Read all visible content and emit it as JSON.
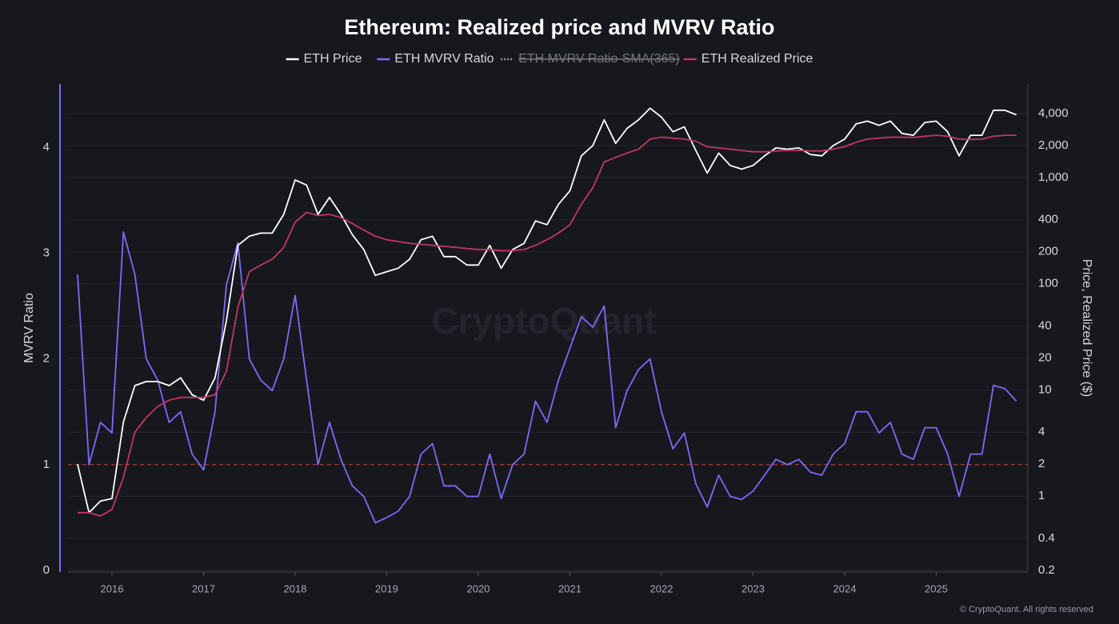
{
  "chart_data": {
    "type": "line",
    "title": "Ethereum: Realized price and MVRV Ratio",
    "ylabel": "MVRV Ratio",
    "y2label": "Price, Realized Price ($)",
    "watermark": "CryptoQuant",
    "footer": "© CryptoQuant. All rights reserved",
    "x": [
      2015.625,
      2015.75,
      2015.875,
      2016.0,
      2016.125,
      2016.25,
      2016.375,
      2016.5,
      2016.625,
      2016.75,
      2016.875,
      2017.0,
      2017.125,
      2017.25,
      2017.375,
      2017.5,
      2017.625,
      2017.75,
      2017.875,
      2018.0,
      2018.125,
      2018.25,
      2018.375,
      2018.5,
      2018.625,
      2018.75,
      2018.875,
      2019.0,
      2019.125,
      2019.25,
      2019.375,
      2019.5,
      2019.625,
      2019.75,
      2019.875,
      2020.0,
      2020.125,
      2020.25,
      2020.375,
      2020.5,
      2020.625,
      2020.75,
      2020.875,
      2021.0,
      2021.125,
      2021.25,
      2021.375,
      2021.5,
      2021.625,
      2021.75,
      2021.875,
      2022.0,
      2022.125,
      2022.25,
      2022.375,
      2022.5,
      2022.625,
      2022.75,
      2022.875,
      2023.0,
      2023.125,
      2023.25,
      2023.375,
      2023.5,
      2023.625,
      2023.75,
      2023.875,
      2024.0,
      2024.125,
      2024.25,
      2024.375,
      2024.5,
      2024.625,
      2024.75,
      2024.875,
      2025.0,
      2025.125,
      2025.25,
      2025.375,
      2025.5,
      2025.625,
      2025.75,
      2025.875
    ],
    "xlim": [
      2015.52,
      2026.0
    ],
    "xticks": [
      2016,
      2017,
      2018,
      2019,
      2020,
      2021,
      2022,
      2023,
      2024,
      2025
    ],
    "ylim": [
      0,
      4.6
    ],
    "yticks": [
      0,
      1,
      2,
      3,
      4
    ],
    "y2lim": [
      0.2,
      7600
    ],
    "y2scale": "log",
    "y2ticks": [
      0.2,
      0.4,
      1,
      2,
      4,
      10,
      20,
      40,
      100,
      200,
      400,
      {
        "value": 1000,
        "label": "1,000"
      },
      {
        "value": 2000,
        "label": "2,000"
      },
      {
        "value": 4000,
        "label": "4,000"
      }
    ],
    "grid": true,
    "reference_lines": [
      {
        "value": 1,
        "color": "#c0392b"
      }
    ],
    "series": [
      {
        "name": "ETH Price",
        "color": "#ffffff",
        "axis": "y2",
        "values": [
          2.0,
          0.7,
          0.9,
          0.95,
          5,
          11,
          12,
          12,
          11,
          13,
          9,
          8,
          13,
          45,
          230,
          280,
          300,
          300,
          450,
          950,
          850,
          450,
          650,
          450,
          290,
          210,
          120,
          130,
          140,
          170,
          260,
          280,
          180,
          180,
          150,
          150,
          230,
          140,
          210,
          240,
          390,
          360,
          560,
          750,
          1600,
          2000,
          3500,
          2100,
          2900,
          3500,
          4500,
          3700,
          2700,
          3000,
          1800,
          1100,
          1700,
          1300,
          1200,
          1300,
          1600,
          1900,
          1850,
          1900,
          1650,
          1600,
          2000,
          2300,
          3200,
          3400,
          3100,
          3400,
          2600,
          2500,
          3300,
          3400,
          2700,
          1600,
          2500,
          2500,
          4300,
          4300,
          3900
        ]
      },
      {
        "name": "ETH MVRV Ratio",
        "color": "#7b6cf6",
        "values": [
          2.8,
          1.0,
          1.4,
          1.3,
          3.2,
          2.8,
          2.0,
          1.8,
          1.4,
          1.5,
          1.1,
          0.95,
          1.5,
          2.7,
          3.1,
          2.0,
          1.8,
          1.7,
          2.0,
          2.6,
          1.8,
          1.0,
          1.4,
          1.05,
          0.8,
          0.7,
          0.45,
          0.5,
          0.56,
          0.7,
          1.1,
          1.2,
          0.8,
          0.8,
          0.7,
          0.7,
          1.1,
          0.68,
          1.0,
          1.1,
          1.6,
          1.4,
          1.8,
          2.1,
          2.4,
          2.3,
          2.5,
          1.35,
          1.7,
          1.9,
          2.0,
          1.5,
          1.15,
          1.3,
          0.82,
          0.6,
          0.9,
          0.7,
          0.67,
          0.75,
          0.9,
          1.05,
          1.0,
          1.05,
          0.93,
          0.9,
          1.1,
          1.2,
          1.5,
          1.5,
          1.3,
          1.4,
          1.1,
          1.05,
          1.35,
          1.35,
          1.1,
          0.7,
          1.1,
          1.1,
          1.75,
          1.72,
          1.6
        ]
      },
      {
        "name": "ETH MVRV Ratio-SMA(365)",
        "color": "#9a9aa8",
        "hidden": true
      },
      {
        "name": "ETH Realized Price",
        "color": "#c2385f",
        "axis": "y2",
        "values": [
          0.7,
          0.7,
          0.65,
          0.75,
          1.5,
          4,
          5.5,
          7,
          8,
          8.5,
          8.5,
          8.5,
          9,
          15,
          60,
          130,
          150,
          170,
          220,
          380,
          470,
          440,
          450,
          420,
          370,
          320,
          280,
          260,
          250,
          240,
          235,
          230,
          225,
          220,
          215,
          210,
          210,
          205,
          205,
          210,
          230,
          260,
          300,
          360,
          560,
          800,
          1400,
          1550,
          1700,
          1850,
          2300,
          2400,
          2350,
          2300,
          2200,
          1950,
          1900,
          1850,
          1800,
          1750,
          1750,
          1780,
          1800,
          1800,
          1780,
          1780,
          1850,
          1950,
          2150,
          2300,
          2350,
          2400,
          2400,
          2380,
          2450,
          2500,
          2450,
          2300,
          2280,
          2300,
          2450,
          2500,
          2500
        ]
      }
    ]
  }
}
